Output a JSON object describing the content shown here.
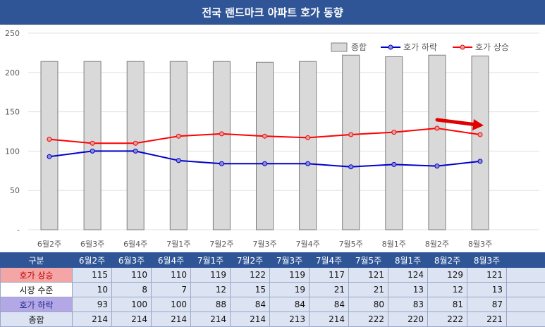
{
  "title": "전국 랜드마크 아파트 호가 동향",
  "colors": {
    "header_bg": "#2f5597",
    "bar_fill": "#d9d9d9",
    "bar_stroke": "#808080",
    "rise_line": "#ff0000",
    "fall_line": "#0000cc",
    "arrow": "#e00000"
  },
  "chart_data": {
    "type": "bar",
    "categories": [
      "6월2주",
      "6월3주",
      "6월4주",
      "7월1주",
      "7월2주",
      "7월3주",
      "7월4주",
      "7월5주",
      "8월1주",
      "8월2주",
      "8월3주"
    ],
    "series": [
      {
        "name": "종합",
        "type": "bar",
        "values": [
          214,
          214,
          214,
          214,
          214,
          213,
          214,
          222,
          220,
          222,
          221
        ]
      },
      {
        "name": "호가 하락",
        "type": "line",
        "values": [
          93,
          100,
          100,
          88,
          84,
          84,
          84,
          80,
          83,
          81,
          87
        ]
      },
      {
        "name": "호가 상승",
        "type": "line",
        "values": [
          115,
          110,
          110,
          119,
          122,
          119,
          117,
          121,
          124,
          129,
          121
        ]
      }
    ],
    "ylim": [
      0,
      250
    ],
    "y_ticks": [
      "-",
      "50",
      "100",
      "150",
      "200",
      "250"
    ],
    "grid": true,
    "legend_position": "top-right"
  },
  "table": {
    "header_label": "구분",
    "rows": [
      {
        "label": "호가 상승",
        "values": [
          "115",
          "110",
          "110",
          "119",
          "122",
          "119",
          "117",
          "121",
          "124",
          "129",
          "121"
        ]
      },
      {
        "label": "시장 수준",
        "values": [
          "10",
          "8",
          "7",
          "12",
          "15",
          "19",
          "21",
          "21",
          "13",
          "12",
          "13"
        ]
      },
      {
        "label": "호가 하락",
        "values": [
          "93",
          "100",
          "100",
          "88",
          "84",
          "84",
          "84",
          "80",
          "83",
          "81",
          "87"
        ]
      },
      {
        "label": "종합",
        "values": [
          "214",
          "214",
          "214",
          "214",
          "214",
          "213",
          "214",
          "222",
          "220",
          "222",
          "221"
        ]
      }
    ]
  }
}
